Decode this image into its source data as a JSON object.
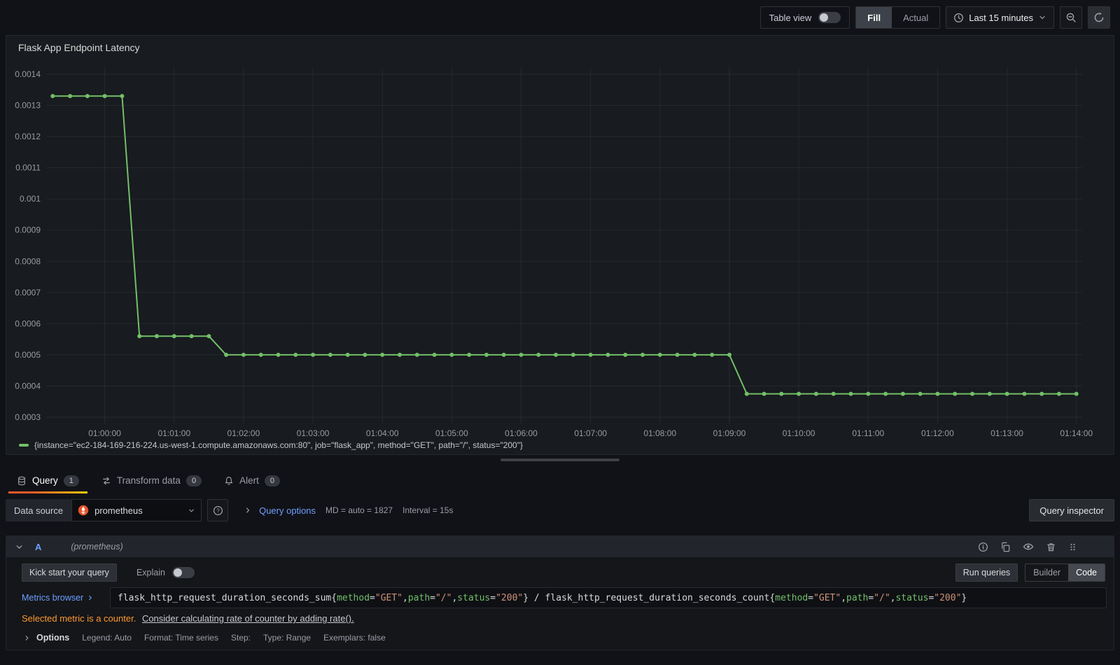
{
  "toolbar": {
    "table_view_label": "Table view",
    "fill_label": "Fill",
    "actual_label": "Actual",
    "time_range": "Last 15 minutes"
  },
  "panel": {
    "title": "Flask App Endpoint Latency",
    "legend": "{instance=\"ec2-184-169-216-224.us-west-1.compute.amazonaws.com:80\", job=\"flask_app\", method=\"GET\", path=\"/\", status=\"200\"}"
  },
  "chart_data": {
    "type": "line",
    "title": "Flask App Endpoint Latency",
    "xlabel": "",
    "ylabel": "",
    "ylim": [
      0.0003,
      0.0014
    ],
    "grid": true,
    "legend_position": "bottom",
    "x_ticks": [
      {
        "t": 0,
        "label": "01:00:00"
      },
      {
        "t": 60,
        "label": "01:01:00"
      },
      {
        "t": 120,
        "label": "01:02:00"
      },
      {
        "t": 180,
        "label": "01:03:00"
      },
      {
        "t": 240,
        "label": "01:04:00"
      },
      {
        "t": 300,
        "label": "01:05:00"
      },
      {
        "t": 360,
        "label": "01:06:00"
      },
      {
        "t": 420,
        "label": "01:07:00"
      },
      {
        "t": 480,
        "label": "01:08:00"
      },
      {
        "t": 540,
        "label": "01:09:00"
      },
      {
        "t": 600,
        "label": "01:10:00"
      },
      {
        "t": 660,
        "label": "01:11:00"
      },
      {
        "t": 720,
        "label": "01:12:00"
      },
      {
        "t": 780,
        "label": "01:13:00"
      },
      {
        "t": 840,
        "label": "01:14:00"
      }
    ],
    "y_ticks": [
      {
        "v": 0.0014,
        "label": "0.0014"
      },
      {
        "v": 0.0013,
        "label": "0.0013"
      },
      {
        "v": 0.0012,
        "label": "0.0012"
      },
      {
        "v": 0.0011,
        "label": "0.0011"
      },
      {
        "v": 0.001,
        "label": "0.001"
      },
      {
        "v": 0.0009,
        "label": "0.0009"
      },
      {
        "v": 0.0008,
        "label": "0.0008"
      },
      {
        "v": 0.0007,
        "label": "0.0007"
      },
      {
        "v": 0.0006,
        "label": "0.0006"
      },
      {
        "v": 0.0005,
        "label": "0.0005"
      },
      {
        "v": 0.0004,
        "label": "0.0004"
      },
      {
        "v": 0.0003,
        "label": "0.0003"
      }
    ],
    "series": [
      {
        "name": "{instance=\"ec2-184-169-216-224.us-west-1.compute.amazonaws.com:80\", job=\"flask_app\", method=\"GET\", path=\"/\", status=\"200\"}",
        "color": "#73bf69",
        "t0_seconds": -45,
        "step_seconds": 15,
        "values": [
          0.00133,
          0.00133,
          0.00133,
          0.00133,
          0.00133,
          0.00056,
          0.00056,
          0.00056,
          0.00056,
          0.00056,
          0.0005,
          0.0005,
          0.0005,
          0.0005,
          0.0005,
          0.0005,
          0.0005,
          0.0005,
          0.0005,
          0.0005,
          0.0005,
          0.0005,
          0.0005,
          0.0005,
          0.0005,
          0.0005,
          0.0005,
          0.0005,
          0.0005,
          0.0005,
          0.0005,
          0.0005,
          0.0005,
          0.0005,
          0.0005,
          0.0005,
          0.0005,
          0.0005,
          0.0005,
          0.0005,
          0.000375,
          0.000375,
          0.000375,
          0.000375,
          0.000375,
          0.000375,
          0.000375,
          0.000375,
          0.000375,
          0.000375,
          0.000375,
          0.000375,
          0.000375,
          0.000375,
          0.000375,
          0.000375,
          0.000375,
          0.000375,
          0.000375,
          0.000375
        ]
      }
    ]
  },
  "tabs": [
    {
      "label": "Query",
      "count": "1",
      "active": true
    },
    {
      "label": "Transform data",
      "count": "0",
      "active": false
    },
    {
      "label": "Alert",
      "count": "0",
      "active": false
    }
  ],
  "datasource_row": {
    "label": "Data source",
    "value": "prometheus",
    "query_options_label": "Query options",
    "md_text": "MD = auto = 1827",
    "interval_text": "Interval = 15s",
    "inspector_label": "Query inspector"
  },
  "query_editor": {
    "ref_id": "A",
    "ds_hint": "(prometheus)",
    "kick_start_label": "Kick start your query",
    "explain_label": "Explain",
    "run_label": "Run queries",
    "builder_label": "Builder",
    "code_label": "Code",
    "metrics_browser_label": "Metrics browser",
    "tokens": [
      {
        "t": "flask_http_request_duration_seconds_sum{",
        "c": "plain"
      },
      {
        "t": "method",
        "c": "label"
      },
      {
        "t": "=",
        "c": "op"
      },
      {
        "t": "\"GET\"",
        "c": "string"
      },
      {
        "t": ",",
        "c": "plain"
      },
      {
        "t": "path",
        "c": "label"
      },
      {
        "t": "=",
        "c": "op"
      },
      {
        "t": "\"/\"",
        "c": "string"
      },
      {
        "t": ",",
        "c": "plain"
      },
      {
        "t": "status",
        "c": "label"
      },
      {
        "t": "=",
        "c": "op"
      },
      {
        "t": "\"200\"",
        "c": "string"
      },
      {
        "t": "} / flask_http_request_duration_seconds_count{",
        "c": "plain"
      },
      {
        "t": "method",
        "c": "label"
      },
      {
        "t": "=",
        "c": "op"
      },
      {
        "t": "\"GET\"",
        "c": "string"
      },
      {
        "t": ",",
        "c": "plain"
      },
      {
        "t": "path",
        "c": "label"
      },
      {
        "t": "=",
        "c": "op"
      },
      {
        "t": "\"/\"",
        "c": "string"
      },
      {
        "t": ",",
        "c": "plain"
      },
      {
        "t": "status",
        "c": "label"
      },
      {
        "t": "=",
        "c": "op"
      },
      {
        "t": "\"200\"",
        "c": "string"
      },
      {
        "t": "}",
        "c": "plain"
      }
    ],
    "warning_text": "Selected metric is a counter.",
    "warning_link": "Consider calculating rate of counter by adding rate().",
    "options_label": "Options",
    "options_items": [
      "Legend: Auto",
      "Format: Time series",
      "Step:",
      "Type: Range",
      "Exemplars: false"
    ]
  },
  "colors": {
    "accent_orange": "#ff780a",
    "series_green": "#73bf69",
    "link_blue": "#6e9fff",
    "warning_orange": "#ff9830",
    "prometheus_orange": "#e6522c",
    "panel_bg": "#181b1f",
    "page_bg": "#111217"
  },
  "icons": {
    "clock-icon": "clock face",
    "caret-down-icon": "caret down",
    "zoom-out-icon": "magnifier with minus",
    "refresh-icon": "circular arrow",
    "database-icon": "db cylinder",
    "transform-icon": "exchange arrows",
    "bell-icon": "bell",
    "prometheus-icon": "flame in circle",
    "help-icon": "question mark circle",
    "angle-right-icon": "chevron right",
    "angle-down-icon": "chevron down",
    "info-icon": "info circle",
    "copy-icon": "duplicate sheets",
    "eye-icon": "eye",
    "trash-icon": "trash can",
    "drag-handle-icon": "grip dots"
  }
}
